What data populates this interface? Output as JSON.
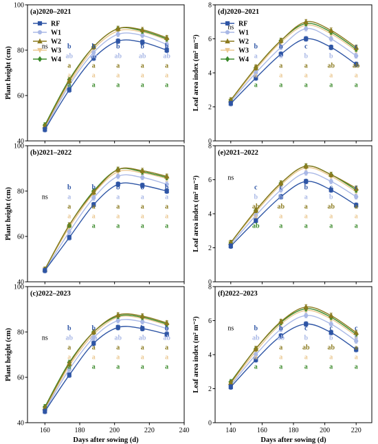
{
  "chart_data": {
    "type": "line",
    "legend": {
      "placement": "top-left",
      "entries": [
        {
          "name": "RF",
          "color": "#2e55a5",
          "marker": "square"
        },
        {
          "name": "W1",
          "color": "#a9b8e6",
          "marker": "circle"
        },
        {
          "name": "W2",
          "color": "#8b7a1f",
          "marker": "triangle"
        },
        {
          "name": "W3",
          "color": "#ebc891",
          "marker": "triangle-down"
        },
        {
          "name": "W4",
          "color": "#3b8a2b",
          "marker": "diamond"
        }
      ]
    },
    "x_label": "Days after sowing (d)",
    "panels": [
      {
        "id": "a",
        "title": "(a)2020–2021",
        "ylabel": "Plant height (cm)",
        "xlim": [
          150,
          240
        ],
        "ylim": [
          40,
          100
        ],
        "xticks": [
          160,
          180,
          200,
          220,
          240
        ],
        "yticks": [
          40,
          60,
          80,
          100
        ],
        "show_x_labels": false,
        "show_legend": true,
        "x": [
          160,
          174,
          188,
          202,
          216,
          230
        ],
        "series": [
          {
            "name": "RF",
            "values": [
              45,
              62.5,
              76.5,
              84,
              83.5,
              80
            ]
          },
          {
            "name": "W1",
            "values": [
              45.5,
              64.5,
              79,
              87,
              86.5,
              82.5
            ]
          },
          {
            "name": "W2",
            "values": [
              46.5,
              66.5,
              81.5,
              89.5,
              89,
              85.5
            ]
          },
          {
            "name": "W3",
            "values": [
              46,
              65.5,
              80.5,
              88.5,
              88,
              84.5
            ]
          },
          {
            "name": "W4",
            "values": [
              47,
              67,
              81.5,
              89.5,
              88.5,
              85
            ]
          }
        ],
        "significance": {
          "ns": [
            {
              "x": 160,
              "row": 0
            }
          ],
          "columns": [
            {
              "x": 174,
              "letters": [
                "b",
                "ab",
                "a",
                "a",
                "a"
              ]
            },
            {
              "x": 188,
              "letters": [
                "b",
                "ab",
                "a",
                "a",
                "a"
              ]
            },
            {
              "x": 202,
              "letters": [
                "b",
                "ab",
                "a",
                "a",
                "a"
              ]
            },
            {
              "x": 216,
              "letters": [
                "b",
                "ab",
                "a",
                "a",
                "a"
              ]
            },
            {
              "x": 230,
              "letters": [
                "b",
                "ab",
                "a",
                "a",
                "a"
              ]
            }
          ]
        }
      },
      {
        "id": "d",
        "title": "(d)2020–2021",
        "ylabel": "Leaf area index (m² m⁻²)",
        "xlim": [
          130,
          230
        ],
        "ylim": [
          0,
          8
        ],
        "xticks": [
          140,
          160,
          180,
          200,
          220
        ],
        "yticks": [
          0,
          2,
          4,
          6,
          8
        ],
        "show_x_labels": false,
        "show_legend": true,
        "x": [
          140,
          156,
          172,
          188,
          204,
          220
        ],
        "series": [
          {
            "name": "RF",
            "values": [
              2.2,
              3.7,
              5.1,
              6.0,
              5.5,
              4.5
            ]
          },
          {
            "name": "W1",
            "values": [
              2.3,
              4.0,
              5.5,
              6.6,
              6.0,
              5.0
            ]
          },
          {
            "name": "W2",
            "values": [
              2.4,
              4.3,
              5.9,
              7.0,
              6.5,
              5.5
            ]
          },
          {
            "name": "W3",
            "values": [
              2.35,
              4.2,
              5.8,
              6.8,
              6.3,
              5.3
            ]
          },
          {
            "name": "W4",
            "values": [
              2.4,
              4.3,
              5.9,
              6.9,
              6.4,
              5.4
            ]
          }
        ],
        "significance": {
          "ns": [
            {
              "x": 140,
              "row": -2
            }
          ],
          "columns": [
            {
              "x": 156,
              "letters": [
                "b",
                "a",
                "a",
                "a",
                "a"
              ]
            },
            {
              "x": 172,
              "letters": [
                "b",
                "a",
                "a",
                "a",
                "a"
              ]
            },
            {
              "x": 188,
              "letters": [
                "c",
                "b",
                "a",
                "a",
                "a"
              ]
            },
            {
              "x": 204,
              "letters": [
                "c",
                "b",
                "ab",
                "a",
                "a"
              ]
            },
            {
              "x": 220,
              "letters": [
                "c",
                "b",
                "ab",
                "a",
                "a"
              ]
            }
          ]
        }
      },
      {
        "id": "b",
        "title": "(b)2021–2022",
        "ylabel": "Plant height (cm)",
        "xlim": [
          150,
          240
        ],
        "ylim": [
          40,
          100
        ],
        "xticks": [
          160,
          180,
          200,
          220,
          240
        ],
        "yticks": [
          40,
          60,
          80,
          100
        ],
        "show_x_labels": false,
        "show_legend": false,
        "x": [
          160,
          174,
          188,
          202,
          216,
          230
        ],
        "series": [
          {
            "name": "RF",
            "values": [
              45,
              59.5,
              74,
              83,
              82.5,
              80
            ]
          },
          {
            "name": "W1",
            "values": [
              45,
              62,
              77,
              86.5,
              86,
              83
            ]
          },
          {
            "name": "W2",
            "values": [
              45.5,
              65,
              79.5,
              89.5,
              89,
              86.5
            ]
          },
          {
            "name": "W3",
            "values": [
              45.5,
              64,
              79,
              88.5,
              88,
              85.5
            ]
          },
          {
            "name": "W4",
            "values": [
              45.5,
              65,
              80,
              89.5,
              88.5,
              86
            ]
          }
        ],
        "significance": {
          "ns": [
            {
              "x": 160,
              "row": 1
            }
          ],
          "columns": [
            {
              "x": 174,
              "letters": [
                "b",
                "a",
                "a",
                "a",
                "a"
              ]
            },
            {
              "x": 188,
              "letters": [
                "b",
                "a",
                "a",
                "a",
                "a"
              ]
            },
            {
              "x": 202,
              "letters": [
                "b",
                "a",
                "a",
                "a",
                "a"
              ]
            },
            {
              "x": 216,
              "letters": [
                "b",
                "a",
                "a",
                "a",
                "a"
              ]
            },
            {
              "x": 230,
              "letters": [
                "b",
                "a",
                "a",
                "a",
                "a"
              ]
            }
          ]
        }
      },
      {
        "id": "e",
        "title": "(e)2021–2022",
        "ylabel": "Leaf area index (m² m⁻²)",
        "xlim": [
          130,
          230
        ],
        "ylim": [
          0,
          8
        ],
        "xticks": [
          140,
          160,
          180,
          200,
          220
        ],
        "yticks": [
          0,
          2,
          4,
          6,
          8
        ],
        "show_x_labels": false,
        "show_legend": false,
        "x": [
          140,
          156,
          172,
          188,
          204,
          220
        ],
        "series": [
          {
            "name": "RF",
            "values": [
              2.1,
              3.6,
              5.0,
              5.9,
              5.4,
              4.5
            ]
          },
          {
            "name": "W1",
            "values": [
              2.2,
              3.9,
              5.4,
              6.4,
              5.9,
              5.0
            ]
          },
          {
            "name": "W2",
            "values": [
              2.3,
              4.2,
              5.8,
              6.8,
              6.3,
              5.5
            ]
          },
          {
            "name": "W3",
            "values": [
              2.3,
              4.1,
              5.7,
              6.7,
              6.2,
              5.3
            ]
          },
          {
            "name": "W4",
            "values": [
              2.3,
              4.2,
              5.8,
              6.8,
              6.3,
              5.4
            ]
          }
        ],
        "significance": {
          "ns": [
            {
              "x": 140,
              "row": -1
            }
          ],
          "columns": [
            {
              "x": 156,
              "letters": [
                "c",
                "b",
                "ab",
                "a",
                "ab"
              ]
            },
            {
              "x": 172,
              "letters": [
                "c",
                "b",
                "ab",
                "a",
                "a"
              ]
            },
            {
              "x": 188,
              "letters": [
                "b",
                "a",
                "a",
                "a",
                "a"
              ]
            },
            {
              "x": 204,
              "letters": [
                "c",
                "b",
                "ab",
                "a",
                "a"
              ]
            },
            {
              "x": 220,
              "letters": [
                "c",
                "b",
                "a",
                "a",
                "a"
              ]
            }
          ]
        }
      },
      {
        "id": "c",
        "title": "(c)2022–2023",
        "ylabel": "Plant height (cm)",
        "xlim": [
          150,
          240
        ],
        "ylim": [
          40,
          100
        ],
        "xticks": [
          160,
          180,
          200,
          220,
          240
        ],
        "yticks": [
          40,
          60,
          80,
          100
        ],
        "show_x_labels": true,
        "show_legend": false,
        "x": [
          160,
          174,
          188,
          202,
          216,
          230
        ],
        "series": [
          {
            "name": "RF",
            "values": [
              45,
              61,
              75,
              82,
              81.5,
              79
            ]
          },
          {
            "name": "W1",
            "values": [
              45.5,
              63.5,
              77.5,
              85,
              84.5,
              81.5
            ]
          },
          {
            "name": "W2",
            "values": [
              46.5,
              66,
              80,
              87.5,
              87,
              84
            ]
          },
          {
            "name": "W3",
            "values": [
              46,
              65,
              79,
              86.5,
              86,
              83
            ]
          },
          {
            "name": "W4",
            "values": [
              47,
              66.5,
              80,
              87,
              86.5,
              83.5
            ]
          }
        ],
        "significance": {
          "ns": [
            {
              "x": 160,
              "row": 1
            }
          ],
          "columns": [
            {
              "x": 174,
              "letters": [
                "b",
                "ab",
                "a",
                "a",
                "a"
              ]
            },
            {
              "x": 188,
              "letters": [
                "b",
                "ab",
                "a",
                "a",
                "a"
              ]
            },
            {
              "x": 202,
              "letters": [
                "b",
                "ab",
                "a",
                "a",
                "a"
              ]
            },
            {
              "x": 216,
              "letters": [
                "b",
                "ab",
                "a",
                "a",
                "a"
              ]
            },
            {
              "x": 230,
              "letters": [
                "b",
                "ab",
                "a",
                "a",
                "a"
              ]
            }
          ]
        }
      },
      {
        "id": "f",
        "title": "(f)2022–2023",
        "ylabel": "Leaf area index (m² m⁻²)",
        "xlim": [
          130,
          230
        ],
        "ylim": [
          0,
          8
        ],
        "xticks": [
          140,
          160,
          180,
          200,
          220
        ],
        "yticks": [
          0,
          2,
          4,
          6,
          8
        ],
        "show_x_labels": true,
        "show_legend": false,
        "x": [
          140,
          156,
          172,
          188,
          204,
          220
        ],
        "series": [
          {
            "name": "RF",
            "values": [
              2.1,
              3.7,
              5.1,
              5.8,
              5.3,
              4.3
            ]
          },
          {
            "name": "W1",
            "values": [
              2.2,
              4.0,
              5.5,
              6.3,
              5.8,
              4.8
            ]
          },
          {
            "name": "W2",
            "values": [
              2.35,
              4.35,
              5.95,
              6.8,
              6.3,
              5.3
            ]
          },
          {
            "name": "W3",
            "values": [
              2.3,
              4.2,
              5.8,
              6.6,
              6.1,
              5.1
            ]
          },
          {
            "name": "W4",
            "values": [
              2.4,
              4.35,
              5.9,
              6.7,
              6.2,
              5.2
            ]
          }
        ],
        "significance": {
          "ns": [
            {
              "x": 140,
              "row": 0
            }
          ],
          "columns": [
            {
              "x": 156,
              "letters": [
                "b",
                "ab",
                "a",
                "a",
                "a"
              ]
            },
            {
              "x": 172,
              "letters": [
                "b",
                "ab",
                "a",
                "a",
                "a"
              ]
            },
            {
              "x": 188,
              "letters": [
                "c",
                "b",
                "ab",
                "a",
                "a"
              ]
            },
            {
              "x": 204,
              "letters": [
                "c",
                "b",
                "ab",
                "a",
                "a"
              ]
            },
            {
              "x": 220,
              "letters": [
                "c",
                "b",
                "a",
                "a",
                "a"
              ]
            }
          ]
        }
      }
    ]
  }
}
